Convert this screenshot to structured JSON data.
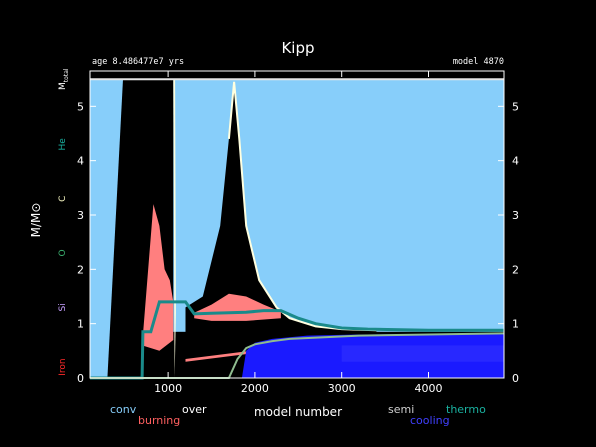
{
  "chart_data": {
    "type": "area",
    "title": "Kipp",
    "header_left": "age 8.486477e7 yrs",
    "header_right": "model 4870",
    "xlabel": "model number",
    "ylabel": "M/M⊙",
    "xlim": [
      100,
      4870
    ],
    "ylim": [
      0,
      5.65
    ],
    "x_ticks": [
      1000,
      2000,
      3000,
      4000
    ],
    "y_ticks": [
      0,
      1,
      2,
      3,
      4,
      5
    ],
    "grid": false,
    "side_labels": [
      {
        "text": "M",
        "sub": "total",
        "y": 5.5,
        "color": "#ffffff"
      },
      {
        "text": "He",
        "y": 4.3,
        "color": "#1ab1a0"
      },
      {
        "text": "C",
        "y": 3.3,
        "color": "#ffffc8"
      },
      {
        "text": "O",
        "y": 2.3,
        "color": "#3cb371"
      },
      {
        "text": "Si",
        "y": 1.3,
        "color": "#c7a0ff"
      },
      {
        "text": "Iron",
        "y": 0.2,
        "color": "#ff2a2a"
      }
    ],
    "legend": [
      {
        "text": "conv",
        "color": "#86cdf9"
      },
      {
        "text": "burning",
        "color": "#ff6060"
      },
      {
        "text": "over",
        "color": "#ffffff"
      },
      {
        "text": "semi",
        "color": "#cfcfcf"
      },
      {
        "text": "cooling",
        "color": "#4040ff"
      },
      {
        "text": "thermo",
        "color": "#1ab1a0"
      }
    ],
    "colors": {
      "convection": "#87cefa",
      "burning": "#ff7f7f",
      "overshoot": "#ffffe0",
      "cooling": "#1a1aff",
      "he_core": "#1a8a8a",
      "c_core": "#8fbc8f",
      "background": "#000000"
    },
    "series": [
      {
        "name": "He",
        "x": [
          100,
          700,
          710,
          800,
          900,
          1050,
          1200,
          1300,
          1500,
          1700,
          1900,
          2100,
          2300,
          2500,
          2700,
          3000,
          3300,
          3600,
          4000,
          4870
        ],
        "y": [
          0.0,
          0.0,
          0.85,
          0.85,
          1.4,
          1.4,
          1.4,
          1.18,
          1.19,
          1.2,
          1.21,
          1.24,
          1.24,
          1.1,
          1.0,
          0.92,
          0.9,
          0.89,
          0.88,
          0.88
        ]
      },
      {
        "name": "C",
        "x": [
          100,
          1700,
          1800,
          1900,
          2000,
          2200,
          2400,
          2800,
          3200,
          4000,
          4870
        ],
        "y": [
          0.0,
          0.0,
          0.35,
          0.55,
          0.62,
          0.68,
          0.72,
          0.75,
          0.78,
          0.8,
          0.82
        ]
      },
      {
        "name": "M_total",
        "x": [
          100,
          4870
        ],
        "y": [
          5.5,
          5.5
        ]
      }
    ]
  }
}
